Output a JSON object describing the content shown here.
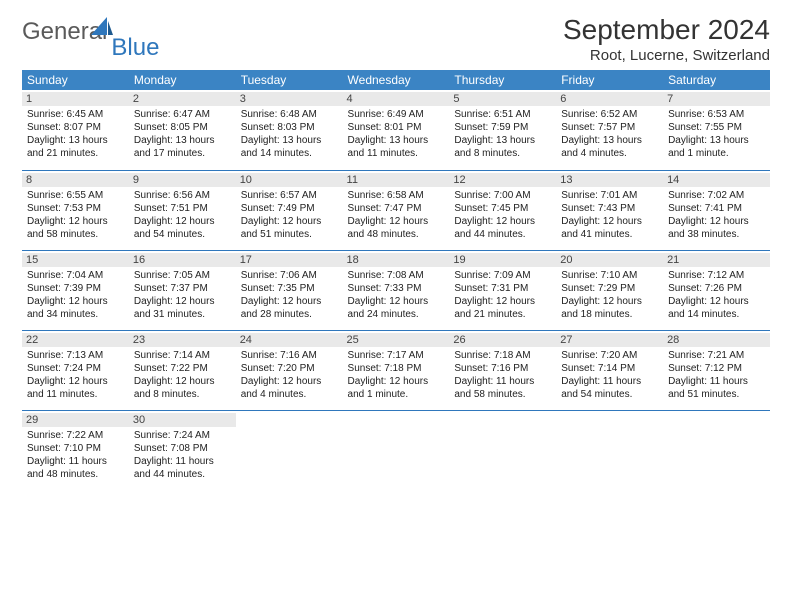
{
  "logo": {
    "general": "General",
    "blue": "Blue"
  },
  "title": "September 2024",
  "location": "Root, Lucerne, Switzerland",
  "weekdays": [
    "Sunday",
    "Monday",
    "Tuesday",
    "Wednesday",
    "Thursday",
    "Friday",
    "Saturday"
  ],
  "colors": {
    "header_bg": "#3b84c4",
    "header_text": "#ffffff",
    "cell_divider": "#2f77bc",
    "daynum_bg": "#e9e9e9",
    "body_text": "#222222",
    "logo_general": "#5a5a5a",
    "logo_blue": "#2f77bc"
  },
  "days": [
    {
      "n": 1,
      "sunrise": "6:45 AM",
      "sunset": "8:07 PM",
      "dl": "13 hours and 21 minutes."
    },
    {
      "n": 2,
      "sunrise": "6:47 AM",
      "sunset": "8:05 PM",
      "dl": "13 hours and 17 minutes."
    },
    {
      "n": 3,
      "sunrise": "6:48 AM",
      "sunset": "8:03 PM",
      "dl": "13 hours and 14 minutes."
    },
    {
      "n": 4,
      "sunrise": "6:49 AM",
      "sunset": "8:01 PM",
      "dl": "13 hours and 11 minutes."
    },
    {
      "n": 5,
      "sunrise": "6:51 AM",
      "sunset": "7:59 PM",
      "dl": "13 hours and 8 minutes."
    },
    {
      "n": 6,
      "sunrise": "6:52 AM",
      "sunset": "7:57 PM",
      "dl": "13 hours and 4 minutes."
    },
    {
      "n": 7,
      "sunrise": "6:53 AM",
      "sunset": "7:55 PM",
      "dl": "13 hours and 1 minute."
    },
    {
      "n": 8,
      "sunrise": "6:55 AM",
      "sunset": "7:53 PM",
      "dl": "12 hours and 58 minutes."
    },
    {
      "n": 9,
      "sunrise": "6:56 AM",
      "sunset": "7:51 PM",
      "dl": "12 hours and 54 minutes."
    },
    {
      "n": 10,
      "sunrise": "6:57 AM",
      "sunset": "7:49 PM",
      "dl": "12 hours and 51 minutes."
    },
    {
      "n": 11,
      "sunrise": "6:58 AM",
      "sunset": "7:47 PM",
      "dl": "12 hours and 48 minutes."
    },
    {
      "n": 12,
      "sunrise": "7:00 AM",
      "sunset": "7:45 PM",
      "dl": "12 hours and 44 minutes."
    },
    {
      "n": 13,
      "sunrise": "7:01 AM",
      "sunset": "7:43 PM",
      "dl": "12 hours and 41 minutes."
    },
    {
      "n": 14,
      "sunrise": "7:02 AM",
      "sunset": "7:41 PM",
      "dl": "12 hours and 38 minutes."
    },
    {
      "n": 15,
      "sunrise": "7:04 AM",
      "sunset": "7:39 PM",
      "dl": "12 hours and 34 minutes."
    },
    {
      "n": 16,
      "sunrise": "7:05 AM",
      "sunset": "7:37 PM",
      "dl": "12 hours and 31 minutes."
    },
    {
      "n": 17,
      "sunrise": "7:06 AM",
      "sunset": "7:35 PM",
      "dl": "12 hours and 28 minutes."
    },
    {
      "n": 18,
      "sunrise": "7:08 AM",
      "sunset": "7:33 PM",
      "dl": "12 hours and 24 minutes."
    },
    {
      "n": 19,
      "sunrise": "7:09 AM",
      "sunset": "7:31 PM",
      "dl": "12 hours and 21 minutes."
    },
    {
      "n": 20,
      "sunrise": "7:10 AM",
      "sunset": "7:29 PM",
      "dl": "12 hours and 18 minutes."
    },
    {
      "n": 21,
      "sunrise": "7:12 AM",
      "sunset": "7:26 PM",
      "dl": "12 hours and 14 minutes."
    },
    {
      "n": 22,
      "sunrise": "7:13 AM",
      "sunset": "7:24 PM",
      "dl": "12 hours and 11 minutes."
    },
    {
      "n": 23,
      "sunrise": "7:14 AM",
      "sunset": "7:22 PM",
      "dl": "12 hours and 8 minutes."
    },
    {
      "n": 24,
      "sunrise": "7:16 AM",
      "sunset": "7:20 PM",
      "dl": "12 hours and 4 minutes."
    },
    {
      "n": 25,
      "sunrise": "7:17 AM",
      "sunset": "7:18 PM",
      "dl": "12 hours and 1 minute."
    },
    {
      "n": 26,
      "sunrise": "7:18 AM",
      "sunset": "7:16 PM",
      "dl": "11 hours and 58 minutes."
    },
    {
      "n": 27,
      "sunrise": "7:20 AM",
      "sunset": "7:14 PM",
      "dl": "11 hours and 54 minutes."
    },
    {
      "n": 28,
      "sunrise": "7:21 AM",
      "sunset": "7:12 PM",
      "dl": "11 hours and 51 minutes."
    },
    {
      "n": 29,
      "sunrise": "7:22 AM",
      "sunset": "7:10 PM",
      "dl": "11 hours and 48 minutes."
    },
    {
      "n": 30,
      "sunrise": "7:24 AM",
      "sunset": "7:08 PM",
      "dl": "11 hours and 44 minutes."
    }
  ],
  "labels": {
    "sunrise": "Sunrise:",
    "sunset": "Sunset:",
    "daylight": "Daylight:"
  },
  "layout": {
    "start_weekday": 0,
    "rows": 5,
    "cols": 7
  }
}
